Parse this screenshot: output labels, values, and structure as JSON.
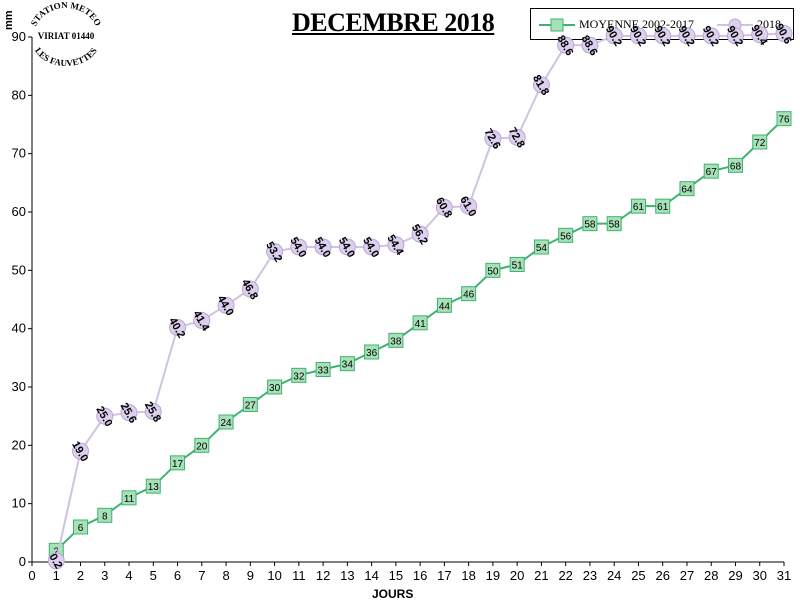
{
  "logo": {
    "line1": "STATION METEO",
    "line2": "VIRIAT 01440",
    "line3": "LES FAUVETTES"
  },
  "chart_data": {
    "type": "line",
    "title": "DECEMBRE 2018",
    "xlabel": "JOURS",
    "ylabel": "mm",
    "xlim": [
      0,
      31
    ],
    "ylim": [
      0,
      90
    ],
    "xticks": [
      0,
      1,
      2,
      3,
      4,
      5,
      6,
      7,
      8,
      9,
      10,
      11,
      12,
      13,
      14,
      15,
      16,
      17,
      18,
      19,
      20,
      21,
      22,
      23,
      24,
      25,
      26,
      27,
      28,
      29,
      30,
      31
    ],
    "yticks": [
      0,
      10,
      20,
      30,
      40,
      50,
      60,
      70,
      80,
      90
    ],
    "grid": false,
    "legend_position": "top-right",
    "x": [
      1,
      2,
      3,
      4,
      5,
      6,
      7,
      8,
      9,
      10,
      11,
      12,
      13,
      14,
      15,
      16,
      17,
      18,
      19,
      20,
      21,
      22,
      23,
      24,
      25,
      26,
      27,
      28,
      29,
      30,
      31
    ],
    "series": [
      {
        "name": "MOYENNE 2002-2017",
        "color": "#3cb371",
        "marker": "square",
        "values": [
          2,
          6,
          8,
          11,
          13,
          17,
          20,
          24,
          27,
          30,
          32,
          33,
          34,
          36,
          38,
          41,
          44,
          46,
          50,
          51,
          54,
          56,
          58,
          58,
          61,
          61,
          64,
          67,
          68,
          72,
          76
        ],
        "labels": [
          "2",
          "6",
          "8",
          "11",
          "13",
          "17",
          "20",
          "24",
          "27",
          "30",
          "32",
          "33",
          "34",
          "36",
          "38",
          "41",
          "44",
          "46",
          "50",
          "51",
          "54",
          "56",
          "58",
          "58",
          "61",
          "61",
          "64",
          "67",
          "68",
          "72",
          "76"
        ]
      },
      {
        "name": "2018",
        "color": "#cfc4e0",
        "marker": "circle",
        "values": [
          0.2,
          19.0,
          25.0,
          25.6,
          25.8,
          40.2,
          41.4,
          44.0,
          46.8,
          53.2,
          54.0,
          54.0,
          54.0,
          54.0,
          54.4,
          56.2,
          60.8,
          61.0,
          72.6,
          72.8,
          81.8,
          88.6,
          88.6,
          90.2,
          90.2,
          90.2,
          90.2,
          90.2,
          90.2,
          90.4,
          90.6
        ],
        "labels": [
          "0.2",
          "19.0",
          "25.0",
          "25.6",
          "25.8",
          "40.2",
          "41.4",
          "44.0",
          "46.8",
          "53.2",
          "54.0",
          "54.0",
          "54.0",
          "54.0",
          "54.4",
          "56.2",
          "60.8",
          "61.0",
          "72.6",
          "72.8",
          "81.8",
          "88.6",
          "88.6",
          "90.2",
          "90.2",
          "90.2",
          "90.2",
          "90.2",
          "90.2",
          "90.4",
          "90.6"
        ]
      }
    ]
  }
}
